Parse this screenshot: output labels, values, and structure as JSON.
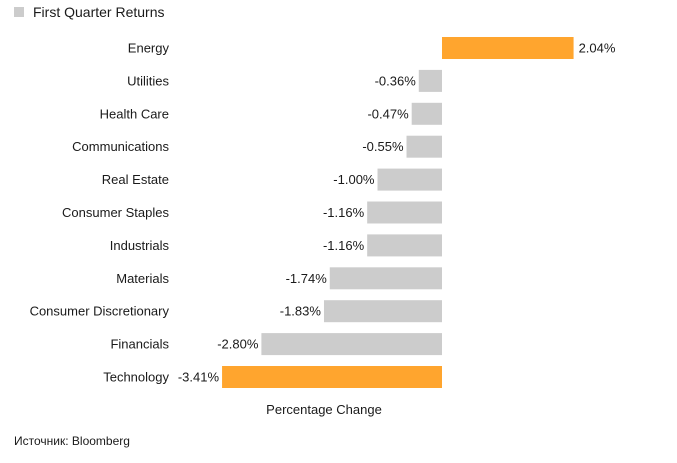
{
  "legend": {
    "label": "First Quarter Returns",
    "color": "#cccccc"
  },
  "colors": {
    "highlight": "#ffa52e",
    "default": "#cccccc"
  },
  "chart_data": {
    "type": "bar",
    "orientation": "horizontal",
    "categories": [
      "Energy",
      "Utilities",
      "Health Care",
      "Communications",
      "Real Estate",
      "Consumer Staples",
      "Industrials",
      "Materials",
      "Consumer Discretionary",
      "Financials",
      "Technology"
    ],
    "series": [
      {
        "name": "First Quarter Returns",
        "values": [
          2.04,
          -0.36,
          -0.47,
          -0.55,
          -1.0,
          -1.16,
          -1.16,
          -1.74,
          -1.83,
          -2.8,
          -3.41
        ]
      }
    ],
    "value_labels": [
      "2.04%",
      "-0.36%",
      "-0.47%",
      "-0.55%",
      "-1.00%",
      "-1.16%",
      "-1.16%",
      "-1.74%",
      "-1.83%",
      "-2.80%",
      "-3.41%"
    ],
    "highlighted_categories": [
      "Energy",
      "Technology"
    ],
    "xlabel": "Percentage Change",
    "ylabel": "",
    "xlim": [
      -3.41,
      2.04
    ],
    "grid": false,
    "legend_position": "top-left"
  },
  "source": "Источник: Bloomberg"
}
